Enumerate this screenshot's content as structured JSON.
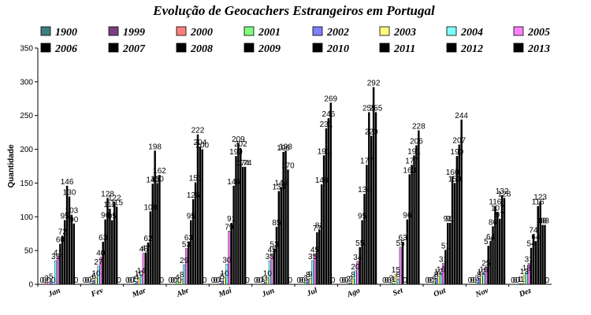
{
  "chart_data": {
    "type": "bar",
    "title": "Evolução de Geocachers Estrangeiros em Portugal",
    "ylabel": "Quantidade",
    "xlabel": "",
    "ylim": [
      0,
      350
    ],
    "yticks": [
      0,
      50,
      100,
      150,
      200,
      250,
      300,
      350
    ],
    "grid": false,
    "legend_position": "top",
    "categories": [
      "Jan",
      "Fev",
      "Mar",
      "Abr",
      "Mai",
      "Jun",
      "Jul",
      "Ago",
      "Set",
      "Out",
      "Nov",
      "Dez"
    ],
    "series": [
      {
        "name": "1900",
        "color": "#3f7f7f",
        "values": [
          0,
          0,
          0,
          0,
          0,
          0,
          0,
          0,
          0,
          0,
          0,
          0
        ]
      },
      {
        "name": "1999",
        "color": "#7f3f7f",
        "values": [
          0,
          0,
          0,
          0,
          0,
          0,
          0,
          0,
          0,
          0,
          0,
          0
        ]
      },
      {
        "name": "2000",
        "color": "#ff7f7f",
        "values": [
          3,
          0,
          0,
          0,
          0,
          0,
          0,
          0,
          0,
          0,
          0,
          0
        ]
      },
      {
        "name": "2001",
        "color": "#7fff7f",
        "values": [
          0,
          2,
          1,
          4,
          1,
          1,
          3,
          2,
          3,
          4,
          3,
          1
        ]
      },
      {
        "name": "2002",
        "color": "#7f7fff",
        "values": [
          5,
          6,
          4,
          0,
          5,
          3,
          8,
          2,
          1,
          9,
          9,
          1
        ]
      },
      {
        "name": "2003",
        "color": "#ffff7f",
        "values": [
          0,
          10,
          10,
          8,
          10,
          10,
          9,
          8,
          15,
          12,
          12,
          13
        ]
      },
      {
        "name": "2004",
        "color": "#7fffff",
        "values": [
          35,
          27,
          14,
          29,
          30,
          35,
          35,
          20,
          8,
          16,
          16,
          18
        ]
      },
      {
        "name": "2005",
        "color": "#ff7fff",
        "values": [
          41,
          40,
          46,
          53,
          79,
          45,
          45,
          34,
          55,
          31,
          25,
          31
        ]
      },
      {
        "name": "2006",
        "color": "#000000",
        "values": [
          60,
          63,
          47,
          63,
          91,
          53,
          77,
          55,
          63,
          51,
          57,
          54
        ]
      },
      {
        "name": "2007",
        "color": "#000000",
        "values": [
          72,
          96,
          62,
          95,
          146,
          85,
          81,
          95,
          0,
          91,
          64,
          74
        ]
      },
      {
        "name": "2008",
        "color": "#000000",
        "values": [
          95,
          128,
          108,
          126,
          190,
          138,
          148,
          134,
          96,
          91,
          86,
          64
        ]
      },
      {
        "name": "2009",
        "color": "#000000",
        "values": [
          146,
          112,
          149,
          151,
          209,
          144,
          191,
          177,
          163,
          160,
          116,
          116
        ]
      },
      {
        "name": "2010",
        "color": "#000000",
        "values": [
          130,
          95,
          198,
          222,
          202,
          196,
          231,
          255,
          177,
          150,
          107,
          123
        ]
      },
      {
        "name": "2011",
        "color": "#000000",
        "values": [
          103,
          122,
          150,
          204,
          174,
          198,
          246,
          220,
          191,
          190,
          97,
          88
        ]
      },
      {
        "name": "2012",
        "color": "#000000",
        "values": [
          90,
          115,
          162,
          200,
          174,
          170,
          269,
          292,
          206,
          207,
          132,
          88
        ]
      },
      {
        "name": "2013",
        "color": "#000000",
        "values": [
          0,
          0,
          0,
          0,
          0,
          0,
          0,
          255,
          228,
          244,
          128,
          0
        ]
      }
    ]
  }
}
